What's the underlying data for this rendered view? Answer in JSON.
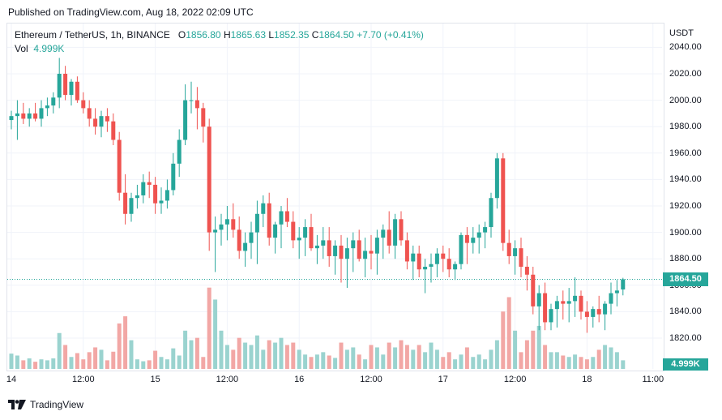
{
  "published": "Published on TradingView.com, Aug 18, 2022 02:09 UTC",
  "legend": {
    "symbol": "Ethereum / TetherUS, 1h, BINANCE",
    "o_label": "O",
    "o_value": "1856.80",
    "h_label": "H",
    "h_value": "1865.63",
    "l_label": "L",
    "l_value": "1852.35",
    "c_label": "C",
    "c_value": "1864.50",
    "change": "+7.70 (+0.41%)",
    "vol_label": "Vol",
    "vol_value": "4.999K"
  },
  "price_badge": "1864.50",
  "vol_badge": "4.999K",
  "brand": {
    "name": "TradingView",
    "icon": "tradingview-logo-icon"
  },
  "colors": {
    "up": "#26a69a",
    "down": "#ef5350",
    "vol_up": "#9ad3cf",
    "vol_down": "#f2a7a5",
    "last_line": "#26a69a"
  },
  "chart_data": {
    "type": "candlestick",
    "y_axis_title": "USDT",
    "ylim": [
      1800,
      2040
    ],
    "yticks": [
      "2040.00",
      "2020.00",
      "2000.00",
      "1980.00",
      "1960.00",
      "1940.00",
      "1920.00",
      "1900.00",
      "1880.00",
      "1860.00",
      "1840.00",
      "1820.00"
    ],
    "x_ticks": [
      {
        "label": "14",
        "i": 0
      },
      {
        "label": "12:00",
        "i": 12
      },
      {
        "label": "15",
        "i": 24
      },
      {
        "label": "12:00",
        "i": 36
      },
      {
        "label": "16",
        "i": 48
      },
      {
        "label": "12:00",
        "i": 60
      },
      {
        "label": "17",
        "i": 72
      },
      {
        "label": "12:00",
        "i": 84
      },
      {
        "label": "18",
        "i": 96
      },
      {
        "label": "11:00",
        "i": 107
      }
    ],
    "last_price": 1864.5,
    "grid": true,
    "candles": [
      [
        1985,
        1992,
        1978,
        1988,
        3.2
      ],
      [
        1988,
        2000,
        1970,
        1990,
        2.8
      ],
      [
        1990,
        1998,
        1982,
        1986,
        1.8
      ],
      [
        1986,
        1994,
        1980,
        1990,
        2.2
      ],
      [
        1990,
        1998,
        1984,
        1986,
        1.5
      ],
      [
        1986,
        2000,
        1980,
        1994,
        2.0
      ],
      [
        1994,
        2002,
        1988,
        1996,
        1.8
      ],
      [
        1996,
        2006,
        1990,
        2002,
        2.2
      ],
      [
        2002,
        2032,
        1994,
        2020,
        7.5
      ],
      [
        2020,
        2026,
        2000,
        2004,
        5.0
      ],
      [
        2004,
        2016,
        1996,
        2014,
        2.5
      ],
      [
        2014,
        2018,
        1998,
        2000,
        3.3
      ],
      [
        2000,
        2006,
        1990,
        1994,
        2.0
      ],
      [
        1994,
        2000,
        1980,
        1986,
        3.5
      ],
      [
        1986,
        1994,
        1974,
        1980,
        4.5
      ],
      [
        1980,
        1992,
        1972,
        1988,
        4.0
      ],
      [
        1988,
        1994,
        1976,
        1984,
        1.8
      ],
      [
        1984,
        1990,
        1966,
        1970,
        3.6
      ],
      [
        1970,
        1976,
        1924,
        1930,
        9.5
      ],
      [
        1930,
        1944,
        1906,
        1914,
        11.0
      ],
      [
        1914,
        1930,
        1908,
        1926,
        6.0
      ],
      [
        1926,
        1936,
        1918,
        1928,
        2.0
      ],
      [
        1928,
        1944,
        1922,
        1938,
        1.6
      ],
      [
        1938,
        1946,
        1926,
        1936,
        1.8
      ],
      [
        1936,
        1942,
        1914,
        1922,
        3.8
      ],
      [
        1922,
        1934,
        1914,
        1924,
        2.5
      ],
      [
        1924,
        1940,
        1918,
        1932,
        2.0
      ],
      [
        1932,
        1960,
        1928,
        1952,
        4.3
      ],
      [
        1952,
        1978,
        1942,
        1970,
        2.8
      ],
      [
        1970,
        2012,
        1966,
        2000,
        8.0
      ],
      [
        2000,
        2014,
        1990,
        2000,
        6.0
      ],
      [
        2000,
        2010,
        1978,
        1994,
        6.5
      ],
      [
        1994,
        1998,
        1968,
        1980,
        2.5
      ],
      [
        1980,
        1986,
        1886,
        1900,
        17.0
      ],
      [
        1900,
        1912,
        1870,
        1902,
        14.5
      ],
      [
        1902,
        1914,
        1890,
        1906,
        8.0
      ],
      [
        1906,
        1920,
        1894,
        1910,
        5.0
      ],
      [
        1910,
        1922,
        1896,
        1902,
        4.0
      ],
      [
        1902,
        1912,
        1880,
        1886,
        6.5
      ],
      [
        1886,
        1900,
        1874,
        1892,
        5.5
      ],
      [
        1892,
        1908,
        1880,
        1900,
        5.0
      ],
      [
        1900,
        1924,
        1876,
        1914,
        7.0
      ],
      [
        1914,
        1928,
        1904,
        1922,
        4.0
      ],
      [
        1922,
        1930,
        1890,
        1896,
        6.0
      ],
      [
        1896,
        1908,
        1884,
        1906,
        5.5
      ],
      [
        1906,
        1920,
        1888,
        1916,
        6.5
      ],
      [
        1916,
        1926,
        1904,
        1908,
        5.0
      ],
      [
        1908,
        1916,
        1888,
        1894,
        5.5
      ],
      [
        1894,
        1904,
        1880,
        1896,
        4.0
      ],
      [
        1896,
        1910,
        1882,
        1904,
        3.0
      ],
      [
        1904,
        1914,
        1886,
        1888,
        2.5
      ],
      [
        1888,
        1898,
        1876,
        1890,
        3.0
      ],
      [
        1890,
        1904,
        1880,
        1894,
        3.5
      ],
      [
        1894,
        1904,
        1874,
        1882,
        2.8
      ],
      [
        1882,
        1894,
        1868,
        1890,
        2.3
      ],
      [
        1890,
        1898,
        1862,
        1880,
        5.5
      ],
      [
        1880,
        1896,
        1858,
        1888,
        4.0
      ],
      [
        1888,
        1900,
        1870,
        1894,
        4.5
      ],
      [
        1894,
        1902,
        1878,
        1880,
        3.0
      ],
      [
        1880,
        1896,
        1866,
        1886,
        2.0
      ],
      [
        1886,
        1898,
        1872,
        1884,
        5.0
      ],
      [
        1884,
        1902,
        1868,
        1896,
        4.5
      ],
      [
        1896,
        1906,
        1880,
        1902,
        3.0
      ],
      [
        1902,
        1916,
        1884,
        1890,
        5.5
      ],
      [
        1890,
        1914,
        1880,
        1910,
        4.5
      ],
      [
        1910,
        1916,
        1890,
        1894,
        6.0
      ],
      [
        1894,
        1900,
        1872,
        1878,
        5.0
      ],
      [
        1878,
        1890,
        1864,
        1884,
        4.0
      ],
      [
        1884,
        1890,
        1866,
        1872,
        5.0
      ],
      [
        1872,
        1880,
        1854,
        1874,
        3.5
      ],
      [
        1874,
        1884,
        1862,
        1876,
        5.5
      ],
      [
        1876,
        1888,
        1866,
        1884,
        4.0
      ],
      [
        1884,
        1890,
        1870,
        1880,
        2.5
      ],
      [
        1880,
        1888,
        1866,
        1872,
        3.5
      ],
      [
        1872,
        1878,
        1864,
        1876,
        2.0
      ],
      [
        1876,
        1900,
        1872,
        1898,
        3.0
      ],
      [
        1898,
        1904,
        1876,
        1892,
        4.5
      ],
      [
        1892,
        1904,
        1884,
        1896,
        2.5
      ],
      [
        1896,
        1906,
        1884,
        1900,
        3.0
      ],
      [
        1900,
        1908,
        1888,
        1904,
        2.0
      ],
      [
        1904,
        1930,
        1896,
        1926,
        4.0
      ],
      [
        1926,
        1960,
        1918,
        1956,
        6.0
      ],
      [
        1956,
        1960,
        1886,
        1892,
        12.0
      ],
      [
        1892,
        1902,
        1876,
        1882,
        15.0
      ],
      [
        1882,
        1894,
        1868,
        1888,
        8.0
      ],
      [
        1888,
        1896,
        1866,
        1874,
        3.5
      ],
      [
        1874,
        1882,
        1856,
        1868,
        6.0
      ],
      [
        1868,
        1874,
        1838,
        1844,
        8.0
      ],
      [
        1844,
        1860,
        1826,
        1854,
        9.0
      ],
      [
        1854,
        1862,
        1826,
        1832,
        5.0
      ],
      [
        1832,
        1846,
        1826,
        1842,
        3.5
      ],
      [
        1842,
        1852,
        1828,
        1848,
        3.5
      ],
      [
        1848,
        1856,
        1834,
        1846,
        2.8
      ],
      [
        1846,
        1858,
        1832,
        1848,
        2.5
      ],
      [
        1848,
        1866,
        1836,
        1852,
        3.0
      ],
      [
        1852,
        1856,
        1834,
        1840,
        2.5
      ],
      [
        1840,
        1848,
        1824,
        1836,
        2.0
      ],
      [
        1836,
        1844,
        1828,
        1842,
        2.5
      ],
      [
        1842,
        1852,
        1832,
        1838,
        4.0
      ],
      [
        1838,
        1848,
        1826,
        1846,
        5.0
      ],
      [
        1846,
        1862,
        1838,
        1854,
        4.5
      ],
      [
        1854,
        1864,
        1844,
        1856,
        3.5
      ],
      [
        1856.8,
        1865.63,
        1852.35,
        1864.5,
        1.8
      ]
    ]
  }
}
